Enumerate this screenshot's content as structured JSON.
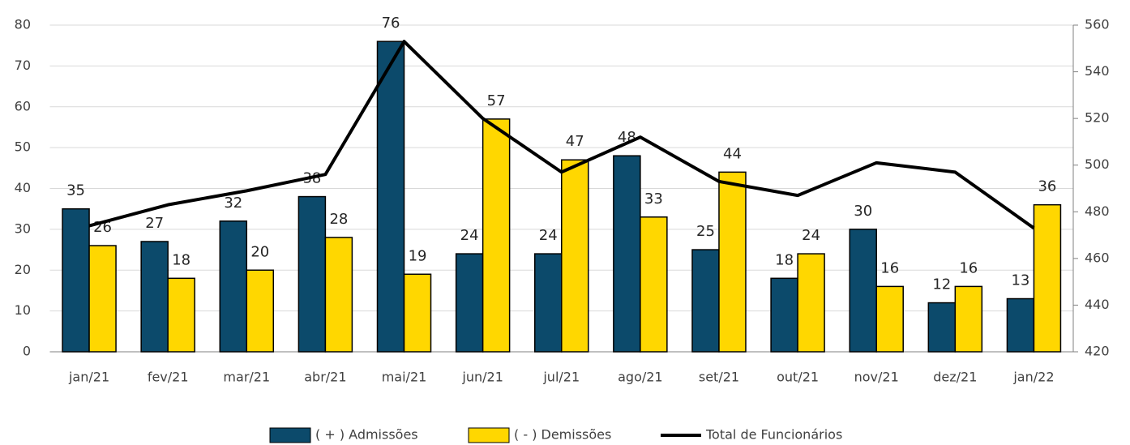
{
  "chart_data": {
    "type": "bar",
    "categories": [
      "jan/21",
      "fev/21",
      "mar/21",
      "abr/21",
      "mai/21",
      "jun/21",
      "jul/21",
      "ago/21",
      "set/21",
      "out/21",
      "nov/21",
      "dez/21",
      "jan/22"
    ],
    "series": [
      {
        "name": "( + ) Admissões",
        "color": "#0c4a6b",
        "type": "bar",
        "values": [
          35,
          27,
          32,
          38,
          76,
          24,
          24,
          48,
          25,
          18,
          30,
          12,
          13
        ]
      },
      {
        "name": "( - ) Demissões",
        "color": "#ffd700",
        "type": "bar",
        "values": [
          26,
          18,
          20,
          28,
          19,
          57,
          47,
          33,
          44,
          24,
          16,
          16,
          36
        ]
      },
      {
        "name": "Total de Funcionários",
        "color": "#000000",
        "type": "line",
        "axis": "y2",
        "values": [
          474,
          483,
          489,
          496,
          553,
          520,
          497,
          512,
          493,
          487,
          501,
          497,
          473
        ]
      }
    ],
    "ylim": [
      0,
      80
    ],
    "yticks": [
      0,
      10,
      20,
      30,
      40,
      50,
      60,
      70,
      80
    ],
    "y2lim": [
      420,
      560
    ],
    "y2ticks": [
      420,
      440,
      460,
      480,
      500,
      520,
      540,
      560
    ],
    "grid": true,
    "legend": "bottom"
  }
}
